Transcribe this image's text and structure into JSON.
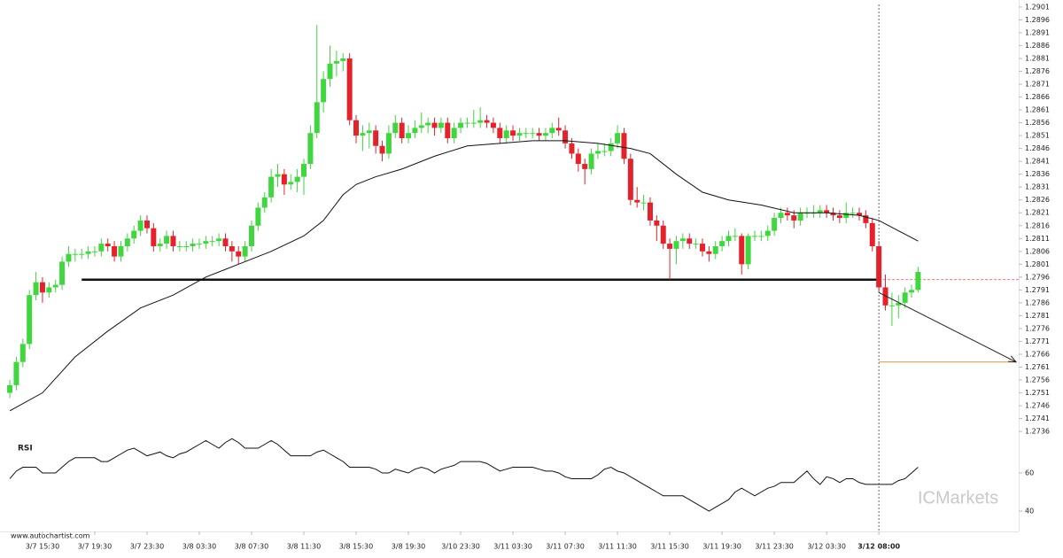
{
  "chart_data": {
    "type": "candlestick",
    "watermark": "www.autochartist.com",
    "brand": "ICMarkets",
    "up_color": "#3fd63f",
    "down_color": "#e3222b",
    "xlim": [
      -1.5,
      154.4
    ],
    "ylim": [
      1.2735,
      1.2902
    ],
    "yticks": [
      1.2736,
      1.2741,
      1.2746,
      1.2751,
      1.2756,
      1.2761,
      1.2766,
      1.2771,
      1.2776,
      1.2781,
      1.2786,
      1.2791,
      1.2796,
      1.2801,
      1.2806,
      1.2811,
      1.2816,
      1.2821,
      1.2826,
      1.2831,
      1.2836,
      1.2841,
      1.2846,
      1.2851,
      1.2856,
      1.2861,
      1.2866,
      1.2871,
      1.2876,
      1.2881,
      1.2886,
      1.2891,
      1.2896,
      1.2901
    ],
    "xticks": [
      {
        "value": 5,
        "label": "3/7 15:30"
      },
      {
        "value": 13,
        "label": "3/7 19:30"
      },
      {
        "value": 21,
        "label": "3/7 23:30"
      },
      {
        "value": 29,
        "label": "3/8 03:30"
      },
      {
        "value": 37,
        "label": "3/8 07:30"
      },
      {
        "value": 45,
        "label": "3/8 11:30"
      },
      {
        "value": 53,
        "label": "3/8 15:30"
      },
      {
        "value": 61,
        "label": "3/8 19:30"
      },
      {
        "value": 69,
        "label": "3/10 23:30"
      },
      {
        "value": 77,
        "label": "3/11 03:30"
      },
      {
        "value": 85,
        "label": "3/11 07:30"
      },
      {
        "value": 93,
        "label": "3/11 11:30"
      },
      {
        "value": 101,
        "label": "3/11 15:30"
      },
      {
        "value": 109,
        "label": "3/11 19:30"
      },
      {
        "value": 117,
        "label": "3/11 23:30"
      },
      {
        "value": 125,
        "label": "3/12 03:30"
      },
      {
        "value": 133,
        "label": "3/12 08:00"
      }
    ],
    "marker_x": 133,
    "candles": [
      [
        1.2751,
        1.2756,
        1.2749,
        1.2754
      ],
      [
        1.2754,
        1.2765,
        1.2752,
        1.2763
      ],
      [
        1.2763,
        1.2772,
        1.2761,
        1.277
      ],
      [
        1.277,
        1.2791,
        1.2768,
        1.2789
      ],
      [
        1.2789,
        1.2798,
        1.2787,
        1.2794
      ],
      [
        1.2794,
        1.2796,
        1.2786,
        1.279
      ],
      [
        1.279,
        1.2794,
        1.2788,
        1.2792
      ],
      [
        1.2792,
        1.2795,
        1.279,
        1.2793
      ],
      [
        1.2793,
        1.2804,
        1.2791,
        1.2802
      ],
      [
        1.2802,
        1.2808,
        1.28,
        1.2805
      ],
      [
        1.2805,
        1.2807,
        1.2802,
        1.2805
      ],
      [
        1.2805,
        1.2807,
        1.2803,
        1.2805
      ],
      [
        1.2805,
        1.2808,
        1.2803,
        1.2806
      ],
      [
        1.2806,
        1.2808,
        1.2804,
        1.2806
      ],
      [
        1.2806,
        1.2811,
        1.2804,
        1.2809
      ],
      [
        1.2809,
        1.2811,
        1.2806,
        1.2808
      ],
      [
        1.2808,
        1.281,
        1.2802,
        1.2804
      ],
      [
        1.2804,
        1.281,
        1.2802,
        1.2808
      ],
      [
        1.2808,
        1.2813,
        1.2806,
        1.2811
      ],
      [
        1.2811,
        1.2816,
        1.2809,
        1.2814
      ],
      [
        1.2814,
        1.282,
        1.2812,
        1.2818
      ],
      [
        1.2818,
        1.282,
        1.2813,
        1.2815
      ],
      [
        1.2815,
        1.2817,
        1.2806,
        1.2808
      ],
      [
        1.2808,
        1.2811,
        1.2806,
        1.2809
      ],
      [
        1.2809,
        1.2814,
        1.2807,
        1.2812
      ],
      [
        1.2812,
        1.2814,
        1.2806,
        1.2808
      ],
      [
        1.2808,
        1.281,
        1.2806,
        1.2808
      ],
      [
        1.2808,
        1.281,
        1.2806,
        1.2808
      ],
      [
        1.2808,
        1.2811,
        1.2806,
        1.2809
      ],
      [
        1.2809,
        1.2811,
        1.2807,
        1.2809
      ],
      [
        1.2809,
        1.2812,
        1.2807,
        1.281
      ],
      [
        1.281,
        1.2812,
        1.2808,
        1.281
      ],
      [
        1.281,
        1.2813,
        1.2808,
        1.2811
      ],
      [
        1.2811,
        1.2813,
        1.2806,
        1.2808
      ],
      [
        1.2808,
        1.281,
        1.2802,
        1.2806
      ],
      [
        1.2806,
        1.2808,
        1.2801,
        1.2804
      ],
      [
        1.2804,
        1.281,
        1.2802,
        1.2808
      ],
      [
        1.2808,
        1.2818,
        1.2806,
        1.2816
      ],
      [
        1.2816,
        1.2825,
        1.2814,
        1.2823
      ],
      [
        1.2823,
        1.2829,
        1.2821,
        1.2827
      ],
      [
        1.2827,
        1.2838,
        1.2825,
        1.2835
      ],
      [
        1.2835,
        1.284,
        1.2831,
        1.2836
      ],
      [
        1.2836,
        1.2838,
        1.2828,
        1.2832
      ],
      [
        1.2832,
        1.2836,
        1.283,
        1.2833
      ],
      [
        1.2833,
        1.2838,
        1.2829,
        1.2835
      ],
      [
        1.2835,
        1.2842,
        1.2828,
        1.284
      ],
      [
        1.284,
        1.2855,
        1.2838,
        1.2852
      ],
      [
        1.2852,
        1.2894,
        1.285,
        1.2864
      ],
      [
        1.2864,
        1.2876,
        1.286,
        1.2873
      ],
      [
        1.2873,
        1.2886,
        1.287,
        1.2879
      ],
      [
        1.2879,
        1.2884,
        1.2874,
        1.288
      ],
      [
        1.288,
        1.2883,
        1.2876,
        1.2881
      ],
      [
        1.2881,
        1.2883,
        1.2855,
        1.2857
      ],
      [
        1.2857,
        1.2859,
        1.2848,
        1.2851
      ],
      [
        1.2851,
        1.2855,
        1.2845,
        1.2852
      ],
      [
        1.2852,
        1.2856,
        1.2846,
        1.2853
      ],
      [
        1.2853,
        1.2855,
        1.2844,
        1.2847
      ],
      [
        1.2847,
        1.2849,
        1.2841,
        1.2844
      ],
      [
        1.2844,
        1.2855,
        1.2842,
        1.2852
      ],
      [
        1.2852,
        1.2859,
        1.285,
        1.2856
      ],
      [
        1.2856,
        1.2858,
        1.2848,
        1.285
      ],
      [
        1.285,
        1.2855,
        1.2848,
        1.2852
      ],
      [
        1.2852,
        1.2857,
        1.285,
        1.2854
      ],
      [
        1.2854,
        1.286,
        1.2852,
        1.2855
      ],
      [
        1.2855,
        1.2858,
        1.2852,
        1.2856
      ],
      [
        1.2856,
        1.2858,
        1.2851,
        1.2854
      ],
      [
        1.2854,
        1.2858,
        1.2852,
        1.2856
      ],
      [
        1.2856,
        1.2858,
        1.2848,
        1.285
      ],
      [
        1.285,
        1.2856,
        1.2848,
        1.2854
      ],
      [
        1.2854,
        1.2858,
        1.2852,
        1.2856
      ],
      [
        1.2856,
        1.2858,
        1.2854,
        1.2856
      ],
      [
        1.2856,
        1.2861,
        1.2854,
        1.2856
      ],
      [
        1.2856,
        1.2862,
        1.2854,
        1.2857
      ],
      [
        1.2857,
        1.2859,
        1.2854,
        1.2856
      ],
      [
        1.2856,
        1.2858,
        1.2852,
        1.2854
      ],
      [
        1.2854,
        1.2856,
        1.2848,
        1.285
      ],
      [
        1.285,
        1.2855,
        1.2848,
        1.2853
      ],
      [
        1.2853,
        1.2855,
        1.2849,
        1.2851
      ],
      [
        1.2851,
        1.2854,
        1.2849,
        1.2852
      ],
      [
        1.2852,
        1.2854,
        1.285,
        1.2852
      ],
      [
        1.2852,
        1.2854,
        1.285,
        1.2852
      ],
      [
        1.2852,
        1.2854,
        1.2849,
        1.2851
      ],
      [
        1.2851,
        1.2854,
        1.2849,
        1.2852
      ],
      [
        1.2852,
        1.2856,
        1.285,
        1.2854
      ],
      [
        1.2854,
        1.2858,
        1.2851,
        1.2853
      ],
      [
        1.2853,
        1.2855,
        1.2846,
        1.2848
      ],
      [
        1.2848,
        1.285,
        1.2842,
        1.2844
      ],
      [
        1.2844,
        1.2846,
        1.2837,
        1.284
      ],
      [
        1.284,
        1.2842,
        1.2832,
        1.2838
      ],
      [
        1.2838,
        1.2846,
        1.2836,
        1.2844
      ],
      [
        1.2844,
        1.2848,
        1.2842,
        1.2845
      ],
      [
        1.2845,
        1.2848,
        1.2843,
        1.2845
      ],
      [
        1.2845,
        1.285,
        1.2843,
        1.2848
      ],
      [
        1.2848,
        1.2855,
        1.2846,
        1.2852
      ],
      [
        1.2852,
        1.2854,
        1.284,
        1.2842
      ],
      [
        1.2842,
        1.2844,
        1.2824,
        1.2826
      ],
      [
        1.2826,
        1.2831,
        1.2823,
        1.2825
      ],
      [
        1.2825,
        1.2828,
        1.2822,
        1.2825
      ],
      [
        1.2825,
        1.2827,
        1.2816,
        1.2818
      ],
      [
        1.2818,
        1.282,
        1.281,
        1.2816
      ],
      [
        1.2816,
        1.2818,
        1.2807,
        1.2809
      ],
      [
        1.2809,
        1.2811,
        1.2795,
        1.2807
      ],
      [
        1.2807,
        1.2812,
        1.2801,
        1.281
      ],
      [
        1.281,
        1.2813,
        1.2807,
        1.2811
      ],
      [
        1.2811,
        1.2813,
        1.2807,
        1.2809
      ],
      [
        1.2809,
        1.2811,
        1.2807,
        1.2809
      ],
      [
        1.2809,
        1.2811,
        1.2804,
        1.2806
      ],
      [
        1.2806,
        1.2808,
        1.2802,
        1.2805
      ],
      [
        1.2805,
        1.281,
        1.2803,
        1.2808
      ],
      [
        1.2808,
        1.2812,
        1.2806,
        1.281
      ],
      [
        1.281,
        1.2814,
        1.2808,
        1.2812
      ],
      [
        1.2812,
        1.2815,
        1.281,
        1.2812
      ],
      [
        1.2812,
        1.2813,
        1.2797,
        1.2801
      ],
      [
        1.2801,
        1.2813,
        1.2799,
        1.2812
      ],
      [
        1.2812,
        1.2814,
        1.281,
        1.2812
      ],
      [
        1.2812,
        1.2814,
        1.281,
        1.2812
      ],
      [
        1.2812,
        1.2816,
        1.281,
        1.2814
      ],
      [
        1.2814,
        1.2821,
        1.2812,
        1.2819
      ],
      [
        1.2819,
        1.2823,
        1.2817,
        1.2821
      ],
      [
        1.2821,
        1.2823,
        1.2818,
        1.282
      ],
      [
        1.282,
        1.2822,
        1.2815,
        1.2818
      ],
      [
        1.2818,
        1.2823,
        1.2816,
        1.2821
      ],
      [
        1.2821,
        1.2823,
        1.2819,
        1.2821
      ],
      [
        1.2821,
        1.2824,
        1.2819,
        1.2821
      ],
      [
        1.2821,
        1.2824,
        1.2819,
        1.2822
      ],
      [
        1.2822,
        1.2824,
        1.2819,
        1.2821
      ],
      [
        1.2821,
        1.2823,
        1.2818,
        1.282
      ],
      [
        1.282,
        1.2822,
        1.2817,
        1.2819
      ],
      [
        1.2819,
        1.2825,
        1.2817,
        1.2821
      ],
      [
        1.2821,
        1.2823,
        1.2819,
        1.2821
      ],
      [
        1.2821,
        1.2823,
        1.2818,
        1.282
      ],
      [
        1.282,
        1.2822,
        1.2815,
        1.2817
      ],
      [
        1.2817,
        1.2819,
        1.2806,
        1.2808
      ],
      [
        1.2808,
        1.281,
        1.279,
        1.2792
      ],
      [
        1.2792,
        1.2797,
        1.2783,
        1.2785
      ],
      [
        1.2785,
        1.279,
        1.2777,
        1.2785
      ],
      [
        1.2785,
        1.2789,
        1.278,
        1.2786
      ],
      [
        1.2786,
        1.2792,
        1.2784,
        1.279
      ],
      [
        1.279,
        1.2793,
        1.2788,
        1.2791
      ],
      [
        1.2791,
        1.28,
        1.279,
        1.2798
      ]
    ],
    "moving_average": {
      "x": [
        0,
        5,
        10,
        15,
        20,
        25,
        30,
        35,
        40,
        45,
        48,
        51,
        53,
        56,
        60,
        65,
        70,
        75,
        80,
        85,
        90,
        95,
        98,
        102,
        106,
        110,
        115,
        120,
        125,
        130,
        133,
        136,
        139
      ],
      "values": [
        1.2744,
        1.2751,
        1.2765,
        1.2775,
        1.2784,
        1.2789,
        1.2796,
        1.2801,
        1.2806,
        1.2812,
        1.2818,
        1.2828,
        1.2832,
        1.2835,
        1.2838,
        1.2843,
        1.2847,
        1.2848,
        1.2849,
        1.2849,
        1.2848,
        1.2846,
        1.2844,
        1.2836,
        1.2829,
        1.2826,
        1.2824,
        1.2821,
        1.2821,
        1.282,
        1.2818,
        1.2814,
        1.281
      ]
    },
    "support": {
      "from": 11,
      "to": 133,
      "value": 1.2795
    },
    "last_price_line": {
      "from": 133,
      "value": 1.2795
    },
    "target": {
      "from": 133,
      "to": 154,
      "value": 1.2763
    },
    "forecast_arrow": {
      "from": [
        133,
        1.279
      ],
      "to": [
        154,
        1.2763
      ]
    },
    "rsi": {
      "label": "RSI",
      "ylim": [
        30,
        80
      ],
      "yticks": [
        40,
        60
      ],
      "values": [
        57,
        61,
        63,
        63,
        63,
        60,
        60,
        60,
        63,
        66,
        68,
        68,
        68,
        68,
        66,
        66,
        68,
        70,
        72,
        73,
        71,
        69,
        70,
        71,
        69,
        68,
        70,
        71,
        73,
        75,
        77,
        75,
        73,
        76,
        78,
        76,
        73,
        73,
        73,
        75,
        77,
        75,
        72,
        69,
        69,
        69,
        69,
        71,
        72,
        70,
        68,
        66,
        63,
        63,
        63,
        63,
        62,
        60,
        60,
        62,
        61,
        60,
        62,
        63,
        62,
        60,
        62,
        63,
        64,
        66,
        66,
        66,
        66,
        65,
        63,
        61,
        62,
        63,
        63,
        63,
        63,
        62,
        61,
        61,
        60,
        58,
        57,
        57,
        57,
        57,
        59,
        62,
        63,
        61,
        60,
        58,
        56,
        54,
        52,
        50,
        48,
        48,
        48,
        48,
        46,
        44,
        42,
        40,
        42,
        44,
        46,
        50,
        52,
        50,
        48,
        50,
        52,
        53,
        55,
        55,
        55,
        58,
        61,
        57,
        54,
        58,
        57,
        55,
        57,
        57,
        55,
        54,
        54,
        54,
        54,
        54,
        56,
        57,
        60,
        63
      ]
    }
  }
}
